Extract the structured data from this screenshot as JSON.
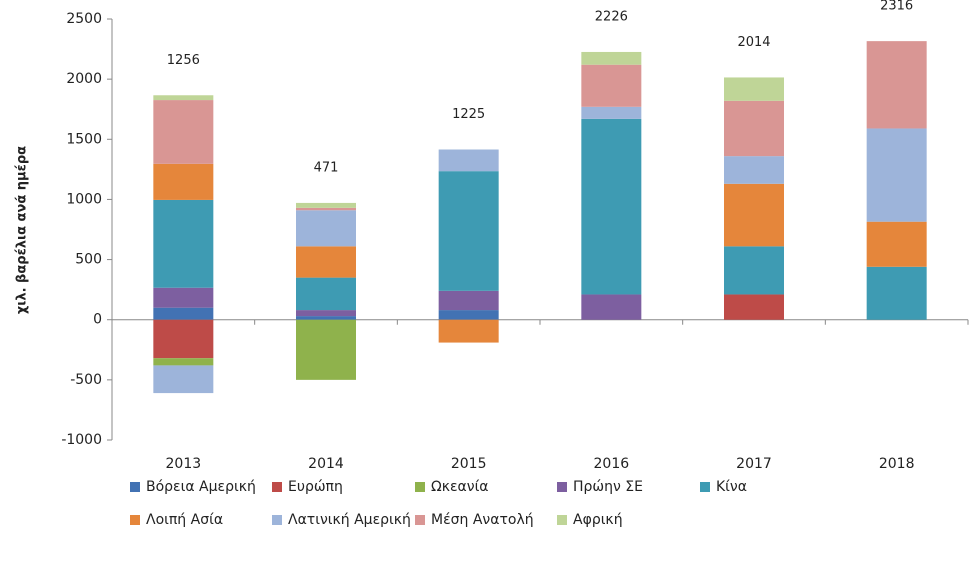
{
  "chart_data": {
    "type": "stacked_bar",
    "y_label": "χιλ. βαρέλια ανά ημέρα",
    "categories": [
      "2013",
      "2014",
      "2015",
      "2016",
      "2017",
      "2018"
    ],
    "totals": [
      1256,
      471,
      1225,
      2226,
      2014,
      2316
    ],
    "ylim": [
      -1000,
      2500
    ],
    "yticks": [
      -1000,
      -500,
      0,
      500,
      1000,
      1500,
      2000,
      2500
    ],
    "grid": false,
    "series": [
      {
        "name": "Βόρεια Αμερική",
        "color": "#4272b3",
        "values": [
          100,
          30,
          80,
          null,
          null,
          null
        ]
      },
      {
        "name": "Ευρώπη",
        "color": "#be4b48",
        "values": [
          -320,
          null,
          null,
          null,
          210,
          null
        ]
      },
      {
        "name": "Ωκεανία",
        "color": "#8fb24c",
        "values": [
          -60,
          -500,
          null,
          null,
          null,
          null
        ]
      },
      {
        "name": "Πρώην ΣΕ",
        "color": "#7d5fa0",
        "values": [
          166,
          50,
          160,
          210,
          null,
          null
        ]
      },
      {
        "name": "Κίνα",
        "color": "#3e9bb3",
        "values": [
          730,
          270,
          995,
          1460,
          400,
          440
        ]
      },
      {
        "name": "Λοιπή Ασία",
        "color": "#e5863b",
        "values": [
          300,
          260,
          -190,
          null,
          520,
          375
        ]
      },
      {
        "name": "Λατινική Αμερική",
        "color": "#9db4da",
        "values": [
          -230,
          300,
          180,
          100,
          230,
          775
        ]
      },
      {
        "name": "Μέση Ανατολή",
        "color": "#d99694",
        "values": [
          530,
          20,
          null,
          350,
          460,
          726
        ]
      },
      {
        "name": "Αφρική",
        "color": "#bfd597",
        "values": [
          40,
          41,
          null,
          106,
          194,
          null
        ]
      }
    ]
  }
}
